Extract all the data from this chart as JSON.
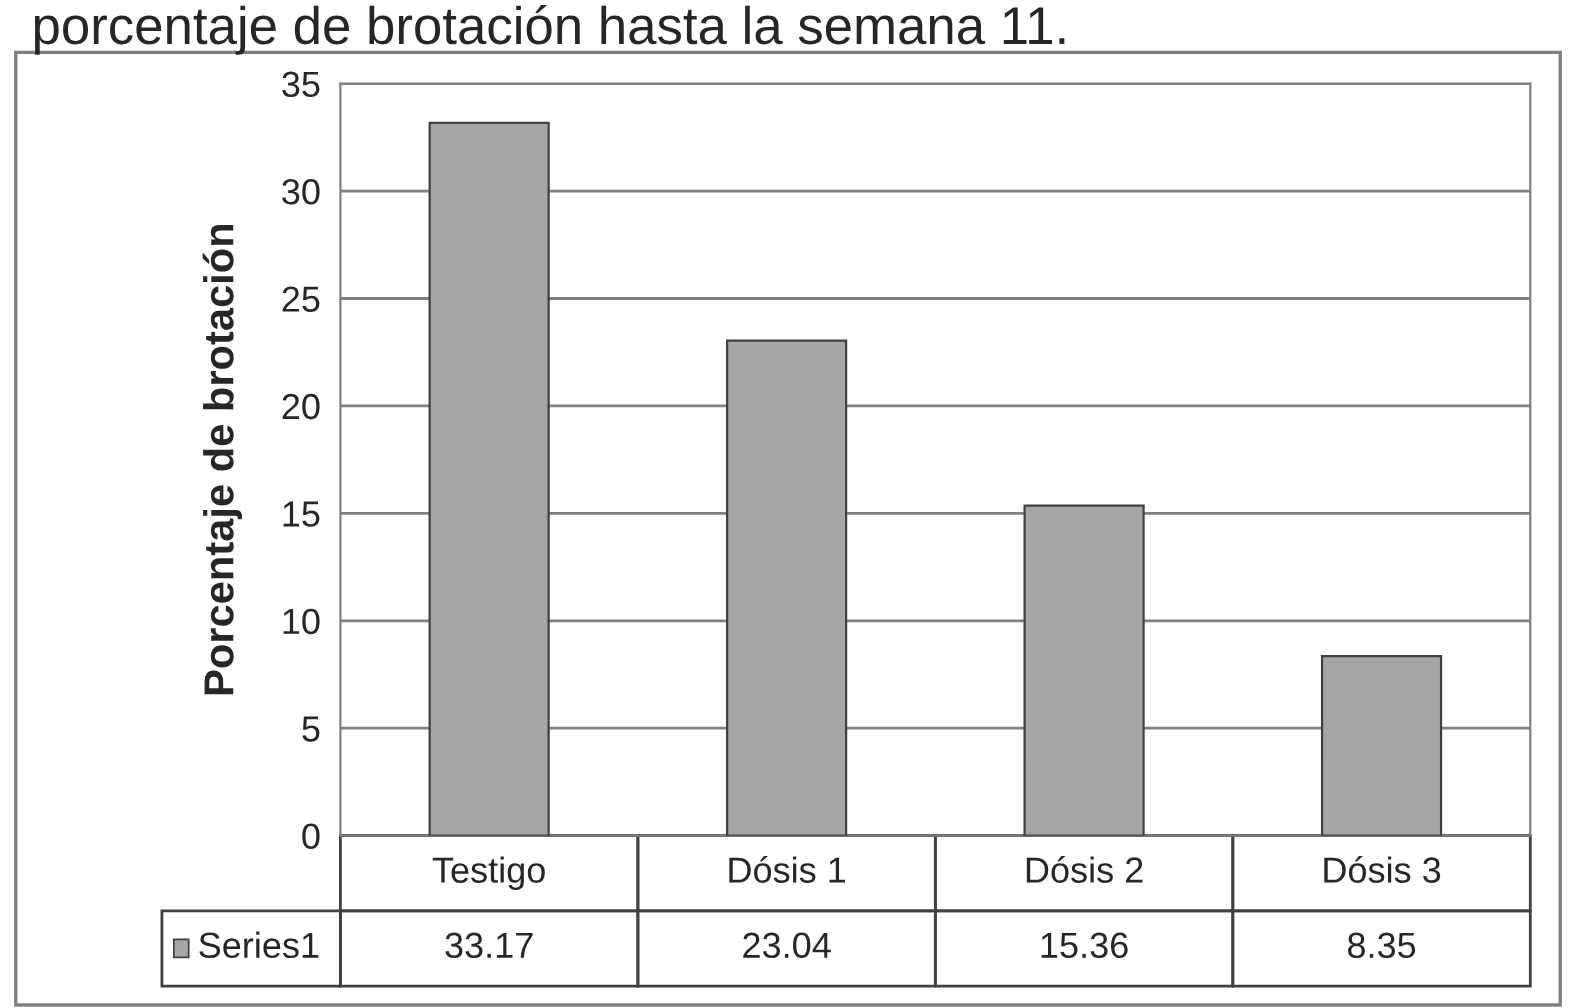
{
  "chart_data": {
    "type": "bar",
    "title": "porcentaje de brotación hasta la semana 11.",
    "ylabel": "Porcentaje de brotación",
    "categories": [
      "Testigo",
      "Dósis 1",
      "Dósis 2",
      "Dósis 3"
    ],
    "series": [
      {
        "name": "Series1",
        "color": "#a6a6a6",
        "values": [
          33.17,
          23.04,
          15.36,
          8.35
        ]
      }
    ],
    "ylim": [
      0,
      35
    ],
    "yticks": [
      0,
      5,
      10,
      15,
      20,
      25,
      30,
      35
    ],
    "grid": "y",
    "data_labels": true,
    "legend": "bottom"
  }
}
